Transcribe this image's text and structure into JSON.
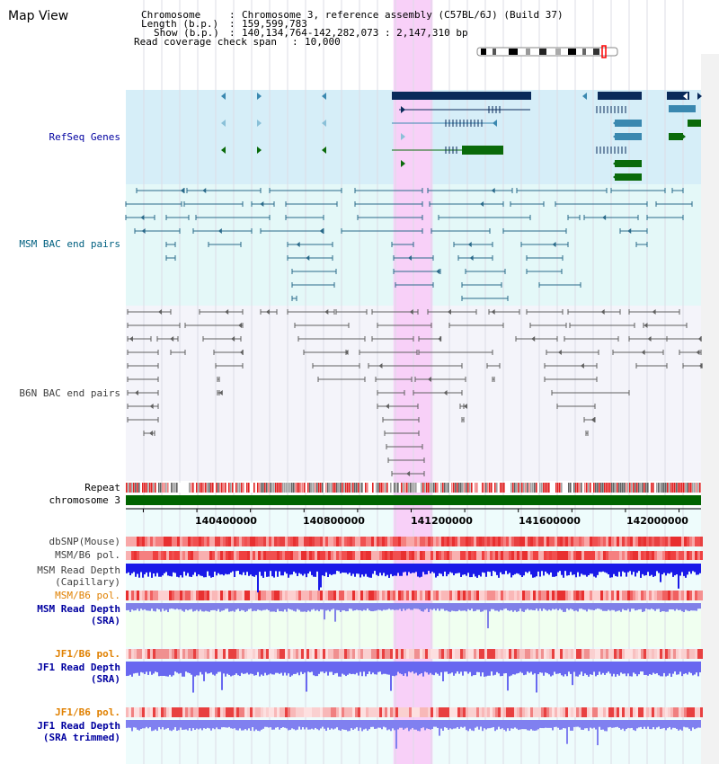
{
  "title": "Map View",
  "header": {
    "chromosome_label": "Chromosome",
    "chromosome_value": "Chromosome 3, reference assembly (C57BL/6J) (Build 37)",
    "length_label": "Length (b.p.)",
    "length_value": "159,599,783",
    "show_label": "Show (b.p.)",
    "show_value": "140,134,764-142,282,073 : 2,147,310 bp",
    "coverage_label": "Read coverage check span",
    "coverage_value": "10,000"
  },
  "tracks": {
    "refseq": "RefSeq Genes",
    "msm_bac": "MSM BAC end pairs",
    "b6n_bac": "B6N BAC end pairs",
    "repeat": "Repeat",
    "chromosome": "chromosome 3",
    "dbsnp": "dbSNP(Mouse)",
    "msm_b6_pol": "MSM/B6 pol.",
    "msm_read_depth_cap_1": "MSM Read Depth",
    "msm_read_depth_cap_2": "(Capillary)",
    "msm_b6_pol_2": "MSM/B6 pol.",
    "msm_read_depth_sra_1": "MSM Read Depth",
    "msm_read_depth_sra_2": "(SRA)",
    "jf1_b6_pol": "JF1/B6 pol.",
    "jf1_read_depth_sra_1": "JF1 Read Depth",
    "jf1_read_depth_sra_2": "(SRA)",
    "jf1_b6_pol_2": "JF1/B6 pol.",
    "jf1_read_depth_trim_1": "JF1 Read Depth",
    "jf1_read_depth_trim_2": "(SRA trimmed)"
  },
  "axis": {
    "ticks": [
      "140400000",
      "140800000",
      "141200000",
      "141600000",
      "142000000"
    ],
    "start": 140134764,
    "end": 142282073,
    "highlight_start": 141134000,
    "highlight_end": 141280000
  },
  "colors": {
    "refseq_bg": "#d6eef8",
    "msm_bg": "#e4f8f8",
    "b6n_bg": "#f4f4fa",
    "highlight": "#f8d0f8",
    "gene_dark": "#0a2a5a",
    "gene_mid": "#3a88b0",
    "gene_green": "#0a6a0a",
    "msm_line": "#2a6a8a",
    "b6n_line": "#606060",
    "label_blue": "#0000a0",
    "label_teal": "#006080",
    "label_orange": "#e08000",
    "chrom_green": "#006400"
  }
}
